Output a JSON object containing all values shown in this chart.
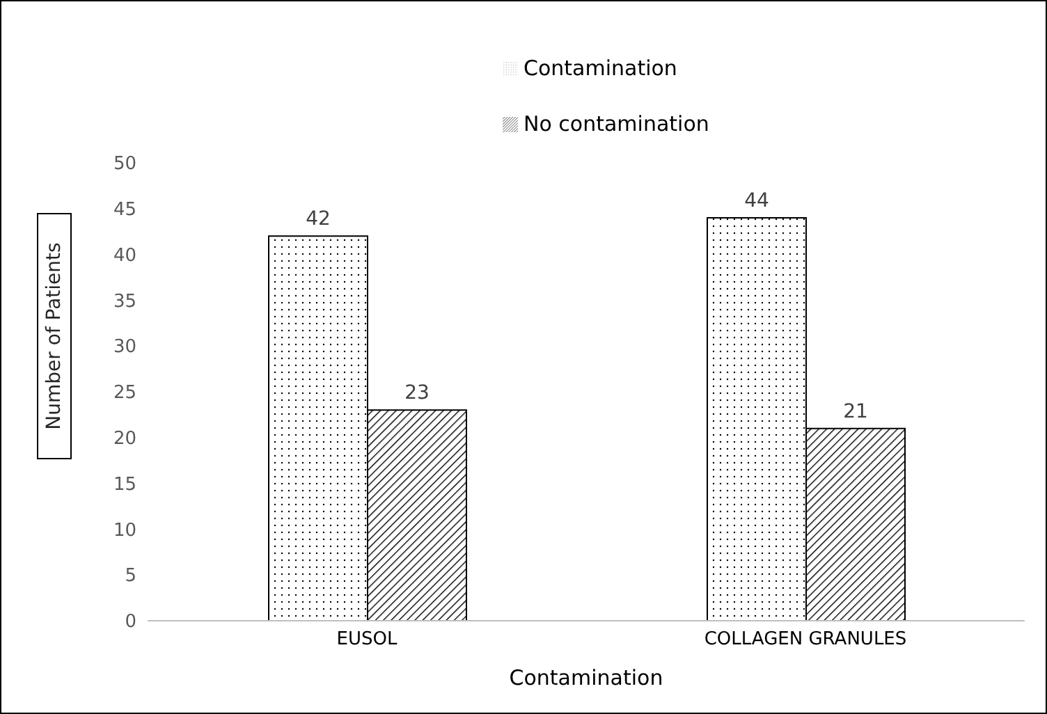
{
  "chart_data": {
    "type": "bar",
    "xlabel": "Contamination",
    "ylabel": "Number of Patients",
    "categories": [
      "EUSOL",
      "COLLAGEN GRANULES"
    ],
    "series": [
      {
        "name": "Contamination",
        "color": "#000000",
        "values": [
          42,
          44
        ]
      },
      {
        "name": "No contamination",
        "color": "#000000",
        "values": [
          23,
          21
        ]
      }
    ],
    "ylim": [
      0,
      50
    ],
    "yticks": [
      0,
      5,
      10,
      15,
      20,
      25,
      30,
      35,
      40,
      45,
      50
    ],
    "data_labels": true,
    "legend": "top"
  }
}
